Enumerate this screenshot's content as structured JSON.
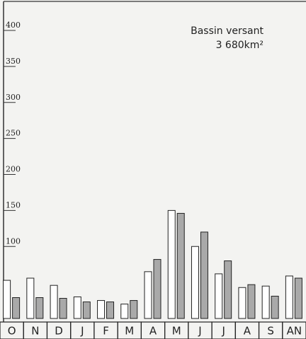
{
  "chart_data": {
    "type": "bar",
    "annotations": [
      "Bassin versant",
      "3 680km²"
    ],
    "categories": [
      "O",
      "N",
      "D",
      "J",
      "F",
      "M",
      "A",
      "M",
      "J",
      "J",
      "A",
      "S",
      "AN"
    ],
    "series": [
      {
        "color": "#ffffff",
        "values": [
          53,
          56,
          46,
          30,
          25,
          20,
          65,
          150,
          100,
          62,
          43,
          45,
          59
        ]
      },
      {
        "color": "#a9a9a9",
        "values": [
          29,
          29,
          28,
          23,
          23,
          25,
          82,
          146,
          120,
          80,
          47,
          31,
          56
        ]
      }
    ],
    "ylim": [
      0,
      400
    ],
    "yticks": [
      100,
      150,
      200,
      250,
      300,
      350,
      400
    ]
  }
}
